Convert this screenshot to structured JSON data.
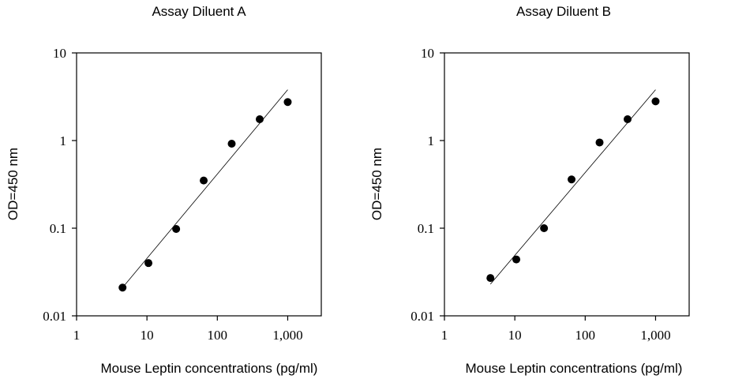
{
  "chart_data": [
    {
      "type": "scatter",
      "title": "Assay Diluent A",
      "xlabel": "Mouse Leptin concentrations (pg/ml)",
      "ylabel": "OD=450 nm",
      "xscale": "log",
      "yscale": "log",
      "xlim": [
        1,
        3000
      ],
      "ylim": [
        0.01,
        10
      ],
      "xticks": [
        1,
        10,
        100,
        1000
      ],
      "xtick_labels": [
        "1",
        "10",
        "100",
        "1,000"
      ],
      "yticks": [
        0.01,
        0.1,
        1,
        10
      ],
      "ytick_labels": [
        "0.01",
        "0.1",
        "1",
        "10"
      ],
      "x": [
        4.5,
        10.5,
        26,
        64,
        160,
        400,
        1000
      ],
      "y": [
        0.021,
        0.04,
        0.098,
        0.35,
        0.92,
        1.75,
        2.75
      ],
      "fit_line": {
        "x": [
          4.5,
          1000
        ],
        "y": [
          0.021,
          3.8
        ]
      }
    },
    {
      "type": "scatter",
      "title": "Assay Diluent B",
      "xlabel": "Mouse Leptin concentrations (pg/ml)",
      "ylabel": "OD=450 nm",
      "xscale": "log",
      "yscale": "log",
      "xlim": [
        1,
        3000
      ],
      "ylim": [
        0.01,
        10
      ],
      "xticks": [
        1,
        10,
        100,
        1000
      ],
      "xtick_labels": [
        "1",
        "10",
        "100",
        "1,000"
      ],
      "yticks": [
        0.01,
        0.1,
        1,
        10
      ],
      "ytick_labels": [
        "0.01",
        "0.1",
        "1",
        "10"
      ],
      "x": [
        4.5,
        10.5,
        26,
        64,
        160,
        400,
        1000
      ],
      "y": [
        0.027,
        0.044,
        0.1,
        0.36,
        0.95,
        1.75,
        2.8
      ],
      "fit_line": {
        "x": [
          4.5,
          1000
        ],
        "y": [
          0.023,
          3.8
        ]
      }
    }
  ]
}
